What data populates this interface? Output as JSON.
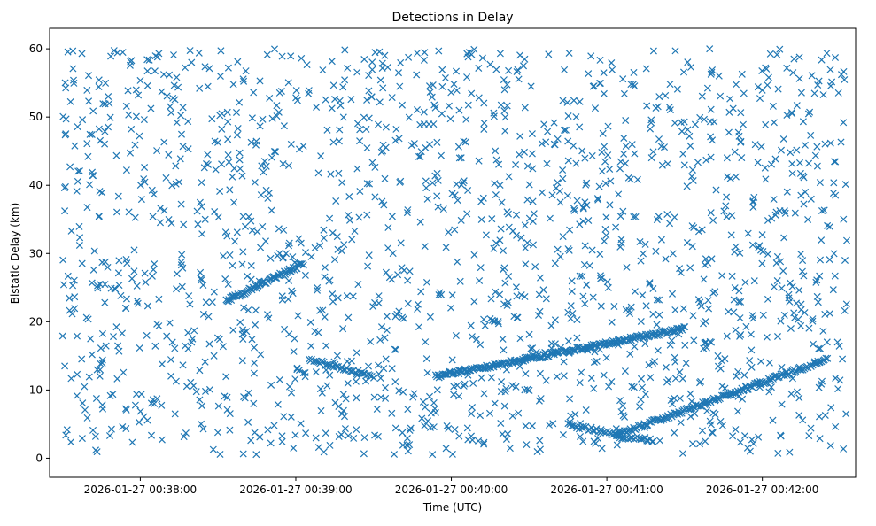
{
  "chart_data": {
    "type": "scatter",
    "title": "Detections in Delay",
    "xlabel": "Time (UTC)",
    "ylabel": "Bistatic Delay (km)",
    "x_unit": "time of day (HH:MM:SS) on 2026-01-27",
    "xlim": [
      "00:37:25",
      "00:42:36"
    ],
    "ylim": [
      -2.8,
      63
    ],
    "x_ticks": [
      {
        "time": "00:38:00",
        "label": "2026-01-27 00:38:00"
      },
      {
        "time": "00:39:00",
        "label": "2026-01-27 00:39:00"
      },
      {
        "time": "00:40:00",
        "label": "2026-01-27 00:40:00"
      },
      {
        "time": "00:41:00",
        "label": "2026-01-27 00:41:00"
      },
      {
        "time": "00:42:00",
        "label": "2026-01-27 00:42:00"
      }
    ],
    "y_ticks": [
      0,
      10,
      20,
      30,
      40,
      50,
      60
    ],
    "marker": "x",
    "grid": false,
    "colors": {
      "marker": "#1f77b4"
    },
    "tracks": [
      {
        "start": [
          "00:38:33",
          23.0
        ],
        "end": [
          "00:39:03",
          28.5
        ],
        "count": 70
      },
      {
        "start": [
          "00:39:05",
          14.5
        ],
        "end": [
          "00:39:30",
          12.0
        ],
        "count": 40
      },
      {
        "start": [
          "00:39:54",
          12.0
        ],
        "end": [
          "00:41:30",
          19.0
        ],
        "count": 230
      },
      {
        "start": [
          "00:41:03",
          3.3
        ],
        "end": [
          "00:42:25",
          14.5
        ],
        "count": 160
      },
      {
        "start": [
          "00:40:45",
          4.8
        ],
        "end": [
          "00:41:05",
          3.5
        ],
        "count": 30
      },
      {
        "start": [
          "00:41:05",
          3.2
        ],
        "end": [
          "00:41:18",
          2.6
        ],
        "count": 20
      }
    ],
    "clutter": {
      "t_range": [
        "00:37:30",
        "00:42:33"
      ],
      "delay_range": [
        0.5,
        60
      ],
      "count": 1700
    }
  }
}
